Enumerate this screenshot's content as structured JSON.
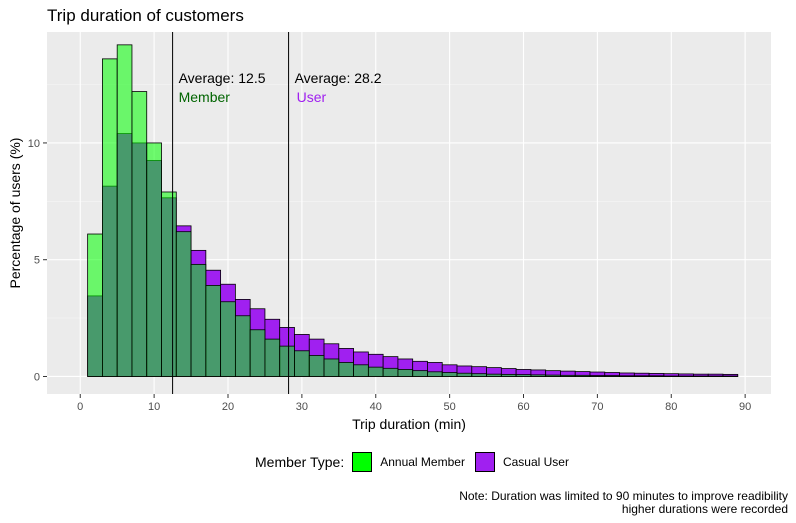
{
  "chart_data": {
    "type": "bar",
    "title": "Trip duration of customers",
    "xlabel": "Trip duration (min)",
    "ylabel": "Percentage of users (%)",
    "xlim": [
      -4.5,
      93.5
    ],
    "ylim": [
      -0.75,
      14.75
    ],
    "x_ticks": [
      0,
      10,
      20,
      30,
      40,
      50,
      60,
      70,
      80,
      90
    ],
    "y_ticks": [
      0,
      5,
      10
    ],
    "bin_width": 2,
    "bin_centers": [
      2,
      4,
      6,
      8,
      10,
      12,
      14,
      16,
      18,
      20,
      22,
      24,
      26,
      28,
      30,
      32,
      34,
      36,
      38,
      40,
      42,
      44,
      46,
      48,
      50,
      52,
      54,
      56,
      58,
      60,
      62,
      64,
      66,
      68,
      70,
      72,
      74,
      76,
      78,
      80,
      82,
      84,
      86,
      88
    ],
    "series": [
      {
        "name": "Annual Member",
        "color": "#00ff00",
        "values": [
          6.1,
          13.6,
          14.2,
          12.2,
          10.0,
          7.9,
          6.2,
          4.8,
          3.9,
          3.2,
          2.6,
          2.0,
          1.6,
          1.3,
          1.1,
          0.9,
          0.75,
          0.6,
          0.5,
          0.4,
          0.35,
          0.3,
          0.25,
          0.2,
          0.17,
          0.14,
          0.12,
          0.1,
          0.09,
          0.08,
          0.07,
          0.06,
          0.05,
          0.05,
          0.04,
          0.04,
          0.03,
          0.03,
          0.03,
          0.02,
          0.02,
          0.02,
          0.02,
          0.02
        ]
      },
      {
        "name": "Casual User",
        "color": "#a020f0",
        "values": [
          3.45,
          8.15,
          10.4,
          10.0,
          9.25,
          7.65,
          6.45,
          5.4,
          4.55,
          3.95,
          3.3,
          2.9,
          2.45,
          2.1,
          1.8,
          1.6,
          1.4,
          1.2,
          1.05,
          0.95,
          0.85,
          0.75,
          0.65,
          0.6,
          0.5,
          0.45,
          0.42,
          0.38,
          0.34,
          0.3,
          0.28,
          0.25,
          0.23,
          0.21,
          0.19,
          0.17,
          0.15,
          0.14,
          0.13,
          0.12,
          0.11,
          0.1,
          0.1,
          0.09
        ]
      }
    ],
    "vlines": [
      {
        "x": 12.5,
        "label": "Average: 12.5",
        "group": "Member",
        "color": "#006400"
      },
      {
        "x": 28.2,
        "label": "Average: 28.2",
        "group": "User",
        "color": "#a020f0"
      }
    ],
    "grid": true,
    "legend_position": "bottom"
  },
  "legend": {
    "title": "Member Type:",
    "items": [
      {
        "label": "Annual Member",
        "color": "#00ff00"
      },
      {
        "label": "Casual User",
        "color": "#a020f0"
      }
    ]
  },
  "note": {
    "line1": "Note: Duration was limited to 90 minutes to improve readibility",
    "line2": "higher durations were recorded"
  }
}
